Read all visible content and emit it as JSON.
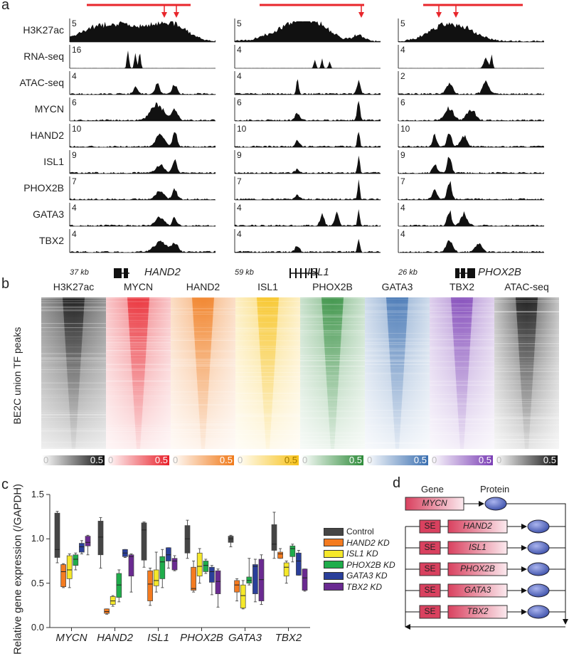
{
  "panel_labels": {
    "a": "a",
    "b": "b",
    "c": "c",
    "d": "d"
  },
  "panel_a": {
    "tracks": [
      {
        "name": "H3K27ac",
        "scales": [
          "5",
          "5",
          "5"
        ]
      },
      {
        "name": "RNA-seq",
        "scales": [
          "16",
          "4",
          "4"
        ]
      },
      {
        "name": "ATAC-seq",
        "scales": [
          "4",
          "4",
          "2"
        ]
      },
      {
        "name": "MYCN",
        "scales": [
          "6",
          "6",
          "6"
        ]
      },
      {
        "name": "HAND2",
        "scales": [
          "10",
          "10",
          "10"
        ]
      },
      {
        "name": "ISL1",
        "scales": [
          "9",
          "9",
          "9"
        ]
      },
      {
        "name": "PHOX2B",
        "scales": [
          "7",
          "7",
          "7"
        ]
      },
      {
        "name": "GATA3",
        "scales": [
          "4",
          "4",
          "4"
        ]
      },
      {
        "name": "TBX2",
        "scales": [
          "4",
          "4",
          "4"
        ]
      }
    ],
    "loci": [
      {
        "size": "37 kb",
        "gene": "HAND2"
      },
      {
        "size": "59 kb",
        "gene": "ISL1"
      },
      {
        "size": "26 kb",
        "gene": "PHOX2B"
      }
    ],
    "colors": {
      "super_enhancer": "#e8262b",
      "arrow": "#e8262b",
      "signal": "#111111"
    }
  },
  "panel_b": {
    "ylabel": "BE2C union TF peaks",
    "heatmaps": [
      {
        "name": "H3K27ac",
        "color": "#111111",
        "min": "0",
        "max": "0.5"
      },
      {
        "name": "MYCN",
        "color": "#e8202a",
        "min": "0",
        "max": "0.5"
      },
      {
        "name": "HAND2",
        "color": "#f07a1a",
        "min": "0",
        "max": "0.5"
      },
      {
        "name": "ISL1",
        "color": "#f7c21b",
        "min": "0",
        "max": "0.5"
      },
      {
        "name": "PHOX2B",
        "color": "#2e8b3a",
        "min": "0",
        "max": "0.5"
      },
      {
        "name": "GATA3",
        "color": "#3b6fb0",
        "min": "0",
        "max": "0.5"
      },
      {
        "name": "TBX2",
        "color": "#7b3fb5",
        "min": "0",
        "max": "0.5"
      },
      {
        "name": "ATAC-seq",
        "color": "#111111",
        "min": "0",
        "max": "0.5"
      }
    ]
  },
  "chart_data": {
    "type": "box",
    "title": "",
    "xlabel": "",
    "ylabel": "Relative gene expression (/GAPDH)",
    "ylim": [
      0,
      1.5
    ],
    "yticks": [
      "0.0",
      "0.5",
      "1.0",
      "1.5"
    ],
    "categories": [
      "MYCN",
      "HAND2",
      "ISL1",
      "PHOX2B",
      "GATA3",
      "TBX2"
    ],
    "legend_position": "right",
    "series": [
      {
        "name": "Control",
        "color": "#454545",
        "italic": false,
        "values": [
          [
            0.73,
            0.79,
            0.88,
            1.29,
            1.31
          ],
          [
            0.67,
            0.82,
            1.02,
            1.2,
            1.24
          ],
          [
            0.68,
            0.76,
            1.1,
            1.18,
            1.19
          ],
          [
            0.78,
            0.84,
            1.0,
            1.15,
            1.21
          ],
          [
            0.91,
            0.96,
            1.0,
            1.03,
            1.04
          ],
          [
            0.78,
            0.87,
            0.94,
            1.16,
            1.3
          ]
        ]
      },
      {
        "name": "HAND2 KD",
        "color": "#f47b20",
        "italic": true,
        "values": [
          [
            0.45,
            0.46,
            0.63,
            0.71,
            0.72
          ],
          [
            0.15,
            0.16,
            0.18,
            0.21,
            0.21
          ],
          [
            0.25,
            0.3,
            0.49,
            0.64,
            0.67
          ],
          [
            0.4,
            0.42,
            0.44,
            0.68,
            0.75
          ],
          [
            0.3,
            0.4,
            0.48,
            0.53,
            0.55
          ],
          [
            0.78,
            0.78,
            0.83,
            0.85,
            0.89
          ]
        ]
      },
      {
        "name": "ISL1 KD",
        "color": "#f5e82a",
        "italic": true,
        "values": [
          [
            0.45,
            0.55,
            0.65,
            0.81,
            0.83
          ],
          [
            0.24,
            0.26,
            0.3,
            0.35,
            0.36
          ],
          [
            0.4,
            0.47,
            0.53,
            0.65,
            0.85
          ],
          [
            0.5,
            0.58,
            0.69,
            0.84,
            0.89
          ],
          [
            0.21,
            0.22,
            0.36,
            0.48,
            0.53
          ],
          [
            0.5,
            0.58,
            0.68,
            0.73,
            0.75
          ]
        ]
      },
      {
        "name": "PHOX2B KD",
        "color": "#1fad4b",
        "italic": true,
        "values": [
          [
            0.65,
            0.7,
            0.77,
            0.82,
            0.84
          ],
          [
            0.29,
            0.34,
            0.48,
            0.61,
            0.65
          ],
          [
            0.45,
            0.55,
            0.74,
            0.8,
            0.88
          ],
          [
            0.61,
            0.63,
            0.7,
            0.75,
            0.77
          ],
          [
            0.48,
            0.5,
            0.53,
            0.57,
            0.78
          ],
          [
            0.74,
            0.8,
            0.89,
            0.92,
            0.94
          ]
        ]
      },
      {
        "name": "GATA3 KD",
        "color": "#2a3f9a",
        "italic": true,
        "values": [
          [
            0.83,
            0.85,
            0.91,
            0.95,
            0.98
          ],
          [
            0.79,
            0.8,
            0.84,
            0.88,
            0.88
          ],
          [
            0.67,
            0.75,
            0.82,
            0.9,
            0.9
          ],
          [
            0.37,
            0.51,
            0.63,
            0.68,
            0.7
          ],
          [
            0.29,
            0.38,
            0.69,
            0.71,
            0.77
          ],
          [
            0.59,
            0.59,
            0.75,
            0.84,
            0.87
          ]
        ]
      },
      {
        "name": "TBX2 KD",
        "color": "#6a2a91",
        "italic": true,
        "values": [
          [
            0.82,
            0.92,
            0.96,
            1.03,
            1.04
          ],
          [
            0.4,
            0.58,
            0.8,
            0.82,
            0.83
          ],
          [
            0.64,
            0.65,
            0.75,
            0.78,
            0.81
          ],
          [
            0.23,
            0.38,
            0.52,
            0.64,
            0.66
          ],
          [
            0.26,
            0.3,
            0.54,
            0.77,
            0.82
          ],
          [
            0.41,
            0.42,
            0.56,
            0.66,
            0.66
          ]
        ]
      }
    ]
  },
  "panel_d": {
    "header_gene": "Gene",
    "header_protein": "Protein",
    "top_gene": "MYCN",
    "se_label": "SE",
    "genes": [
      "HAND2",
      "ISL1",
      "PHOX2B",
      "GATA3",
      "TBX2"
    ],
    "colors": {
      "gene_box": "#d9415f",
      "protein": "#3a4ea8"
    }
  }
}
